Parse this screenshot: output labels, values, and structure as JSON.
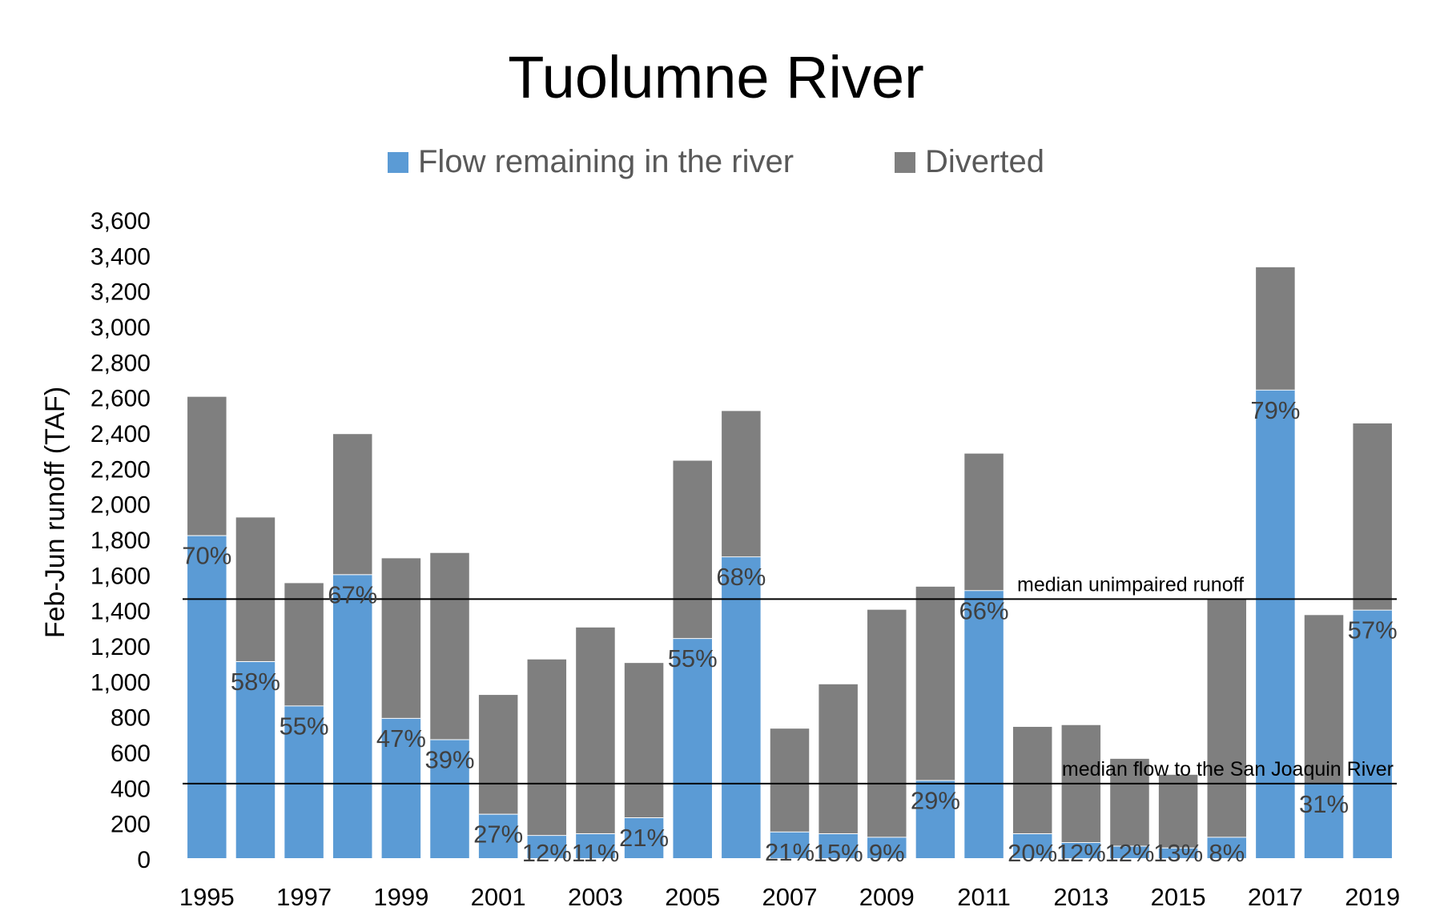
{
  "chart_data": {
    "type": "bar",
    "stacked": true,
    "title": "Tuolumne River",
    "ylabel": "Feb-Jun  runoff (TAF)",
    "xlabel": "",
    "ylim": [
      0,
      3600
    ],
    "yticks": [
      0,
      200,
      400,
      600,
      800,
      1000,
      1200,
      1400,
      1600,
      1800,
      2000,
      2200,
      2400,
      2600,
      2800,
      3000,
      3200,
      3400,
      3600
    ],
    "ytick_labels": [
      "0",
      "200",
      "400",
      "600",
      "800",
      "1,000",
      "1,200",
      "1,400",
      "1,600",
      "1,800",
      "2,000",
      "2,200",
      "2,400",
      "2,600",
      "2,800",
      "3,000",
      "3,200",
      "3,400",
      "3,600"
    ],
    "grid": false,
    "legend_position": "top",
    "categories": [
      "1995",
      "1996",
      "1997",
      "1998",
      "1999",
      "2000",
      "2001",
      "2002",
      "2003",
      "2004",
      "2005",
      "2006",
      "2007",
      "2008",
      "2009",
      "2010",
      "2011",
      "2012",
      "2013",
      "2014",
      "2015",
      "2016",
      "2017",
      "2018",
      "2019"
    ],
    "xtick_labels": [
      "1995",
      "",
      "1997",
      "",
      "1999",
      "",
      "2001",
      "",
      "2003",
      "",
      "2005",
      "",
      "2007",
      "",
      "2009",
      "",
      "2011",
      "",
      "2013",
      "",
      "2015",
      "",
      "2017",
      "",
      "2019"
    ],
    "series": [
      {
        "name": "Flow remaining in the river",
        "color": "#5b9bd5",
        "values": [
          1820,
          1110,
          860,
          1600,
          790,
          670,
          250,
          130,
          140,
          230,
          1240,
          1700,
          150,
          140,
          120,
          440,
          1510,
          140,
          90,
          70,
          60,
          120,
          2640,
          420,
          1400
        ]
      },
      {
        "name": "Diverted",
        "color": "#7f7f7f",
        "values": [
          780,
          810,
          690,
          790,
          900,
          1050,
          670,
          990,
          1160,
          870,
          1000,
          820,
          580,
          840,
          1280,
          1090,
          770,
          600,
          660,
          490,
          410,
          1340,
          690,
          950,
          1050
        ]
      }
    ],
    "data_labels": [
      "70%",
      "58%",
      "55%",
      "67%",
      "47%",
      "39%",
      "27%",
      "12%",
      "11%",
      "21%",
      "55%",
      "68%",
      "21%",
      "15%",
      "9%",
      "29%",
      "66%",
      "20%",
      "12%",
      "12%",
      "13%",
      "8%",
      "79%",
      "31%",
      "57%"
    ],
    "reference_lines": [
      {
        "label": "median unimpaired  runoff",
        "value": 1460
      },
      {
        "label": "median flow to the San Joaquin River",
        "value": 420
      }
    ]
  }
}
